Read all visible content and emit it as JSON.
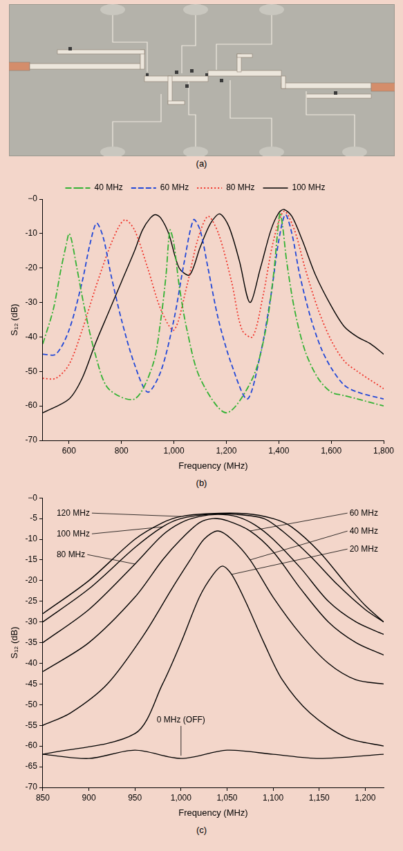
{
  "photo": {
    "caption": "(a)"
  },
  "chart_data": [
    {
      "type": "line",
      "caption": "(b)",
      "x_label": "Frequency (MHz)",
      "y_label": "S₁₂ (dB)",
      "xlim": [
        500,
        1800
      ],
      "xticks": [
        600,
        800,
        {
          "value": 1000,
          "label": "1,000"
        },
        {
          "value": 1200,
          "label": "1,200"
        },
        {
          "value": 1400,
          "label": "1,400"
        },
        {
          "value": 1600,
          "label": "1,600"
        },
        {
          "value": 1800,
          "label": "1,800"
        }
      ],
      "ylim": [
        -70,
        0
      ],
      "yticks": [
        -70,
        -60,
        -50,
        -40,
        -30,
        -20,
        -10,
        {
          "value": 0,
          "label": "−0"
        }
      ],
      "grid": false,
      "legend": "top",
      "series": [
        {
          "name": "40 MHz",
          "color": "#33b233",
          "line_style": "dashdot",
          "x": [
            500,
            540,
            570,
            590,
            600,
            610,
            630,
            660,
            700,
            750,
            850,
            920,
            950,
            970,
            985,
            1000,
            1020,
            1050,
            1100,
            1200,
            1300,
            1350,
            1380,
            1395,
            1405,
            1415,
            1430,
            1460,
            1500,
            1550,
            1600,
            1650,
            1700,
            1800
          ],
          "values": [
            -42,
            -32,
            -20,
            -13,
            -10,
            -12,
            -20,
            -32,
            -45,
            -55,
            -58,
            -48,
            -35,
            -22,
            -9,
            -13,
            -25,
            -38,
            -52,
            -62,
            -52,
            -38,
            -22,
            -10,
            -4,
            -8,
            -18,
            -32,
            -44,
            -52,
            -56,
            -57,
            -58,
            -60
          ]
        },
        {
          "name": "60 MHz",
          "color": "#2147d8",
          "line_style": "dashed",
          "x": [
            500,
            550,
            600,
            650,
            680,
            705,
            730,
            760,
            800,
            850,
            900,
            950,
            1000,
            1040,
            1075,
            1100,
            1130,
            1170,
            1220,
            1280,
            1330,
            1370,
            1400,
            1425,
            1450,
            1480,
            1520,
            1560,
            1600,
            1650,
            1700,
            1800
          ],
          "values": [
            -45,
            -45,
            -38,
            -24,
            -13,
            -7,
            -11,
            -22,
            -35,
            -48,
            -56,
            -50,
            -35,
            -18,
            -6,
            -9,
            -20,
            -35,
            -48,
            -58,
            -45,
            -28,
            -12,
            -4.5,
            -10,
            -22,
            -34,
            -43,
            -49,
            -54,
            -56,
            -58
          ]
        },
        {
          "name": "80 MHz",
          "color": "#f0332a",
          "line_style": "dotted",
          "x": [
            500,
            550,
            600,
            650,
            700,
            750,
            790,
            815,
            850,
            900,
            950,
            1000,
            1050,
            1090,
            1130,
            1170,
            1220,
            1260,
            1300,
            1340,
            1380,
            1420,
            1460,
            1500,
            1550,
            1600,
            1650,
            1700,
            1800
          ],
          "values": [
            -52,
            -52,
            -48,
            -38,
            -26,
            -15,
            -8,
            -6,
            -9,
            -20,
            -32,
            -38,
            -25,
            -12,
            -5,
            -10,
            -24,
            -38,
            -40,
            -28,
            -12,
            -3.5,
            -9,
            -20,
            -32,
            -41,
            -47,
            -50,
            -55
          ]
        },
        {
          "name": "100 MHz",
          "color": "#000000",
          "line_style": "solid",
          "x": [
            500,
            600,
            650,
            700,
            750,
            800,
            850,
            880,
            910,
            930,
            950,
            980,
            1020,
            1060,
            1100,
            1140,
            1175,
            1210,
            1250,
            1290,
            1330,
            1370,
            1400,
            1420,
            1450,
            1490,
            1540,
            1600,
            1650,
            1700,
            1750,
            1800
          ],
          "values": [
            -62,
            -58,
            -52,
            -42,
            -33,
            -24,
            -15,
            -9,
            -5.5,
            -4.5,
            -5.5,
            -10,
            -20,
            -22,
            -14,
            -7,
            -4.3,
            -8,
            -18,
            -30,
            -20,
            -9,
            -4,
            -3,
            -5,
            -12,
            -22,
            -31,
            -37,
            -40,
            -42,
            -45
          ]
        }
      ]
    },
    {
      "type": "line",
      "caption": "(c)",
      "x_label": "Frequency (MHz)",
      "y_label": "S₁₂ (dB)",
      "xlim": [
        850,
        1220
      ],
      "xticks": [
        850,
        900,
        950,
        {
          "value": 1000,
          "label": "1,000"
        },
        {
          "value": 1050,
          "label": "1,050"
        },
        {
          "value": 1100,
          "label": "1,100"
        },
        {
          "value": 1150,
          "label": "1,150"
        },
        {
          "value": 1200,
          "label": "1,200"
        }
      ],
      "ylim": [
        -70,
        0
      ],
      "yticks": [
        -70,
        -65,
        -60,
        -55,
        -50,
        -45,
        -40,
        -35,
        -30,
        -25,
        -20,
        -15,
        -10,
        -5,
        {
          "value": 0,
          "label": "−0"
        }
      ],
      "grid": false,
      "series": [
        {
          "name": "0 MHz (OFF)",
          "color": "#000000",
          "line_style": "solid",
          "x": [
            850,
            900,
            950,
            1000,
            1050,
            1100,
            1150,
            1220
          ],
          "values": [
            -62,
            -63,
            -61,
            -63,
            -61,
            -62,
            -63,
            -62
          ]
        },
        {
          "name": "20 MHz",
          "color": "#000000",
          "line_style": "solid",
          "x": [
            850,
            950,
            980,
            1000,
            1020,
            1035,
            1045,
            1055,
            1070,
            1090,
            1110,
            1140,
            1180,
            1220
          ],
          "values": [
            -62,
            -57,
            -45,
            -35,
            -24,
            -18.5,
            -16.5,
            -18.5,
            -25,
            -35,
            -44,
            -52,
            -58,
            -60
          ]
        },
        {
          "name": "40 MHz",
          "color": "#000000",
          "line_style": "solid",
          "x": [
            850,
            880,
            920,
            960,
            990,
            1010,
            1025,
            1040,
            1055,
            1075,
            1100,
            1130,
            1160,
            1190,
            1220
          ],
          "values": [
            -55,
            -52,
            -45,
            -33,
            -22,
            -15,
            -10,
            -8,
            -10,
            -15,
            -24,
            -33,
            -40,
            -44,
            -45
          ]
        },
        {
          "name": "60 MHz",
          "color": "#000000",
          "line_style": "solid",
          "x": [
            850,
            900,
            950,
            980,
            1000,
            1020,
            1035,
            1050,
            1075,
            1100,
            1130,
            1160,
            1190,
            1220
          ],
          "values": [
            -42,
            -35,
            -24,
            -15,
            -10,
            -6,
            -5,
            -5.5,
            -8,
            -13,
            -22,
            -30,
            -35,
            -38
          ]
        },
        {
          "name": "80 MHz",
          "color": "#000000",
          "line_style": "solid",
          "x": [
            850,
            900,
            950,
            980,
            1000,
            1020,
            1040,
            1060,
            1080,
            1100,
            1130,
            1160,
            1190,
            1220
          ],
          "values": [
            -35,
            -27,
            -16,
            -9,
            -6,
            -4.5,
            -4,
            -4.5,
            -6.5,
            -10,
            -17,
            -25,
            -30,
            -33
          ]
        },
        {
          "name": "100 MHz",
          "color": "#000000",
          "line_style": "solid",
          "x": [
            850,
            900,
            950,
            980,
            1000,
            1030,
            1060,
            1090,
            1110,
            1140,
            1170,
            1200,
            1220
          ],
          "values": [
            -30,
            -22,
            -12,
            -7,
            -5,
            -4,
            -4,
            -5,
            -8,
            -14,
            -21,
            -27,
            -30
          ]
        },
        {
          "name": "120 MHz",
          "color": "#000000",
          "line_style": "solid",
          "x": [
            850,
            900,
            950,
            980,
            1000,
            1030,
            1070,
            1100,
            1120,
            1150,
            1180,
            1200,
            1220
          ],
          "values": [
            -28,
            -20,
            -10,
            -6,
            -4.5,
            -3.8,
            -3.8,
            -5,
            -7,
            -13,
            -21,
            -26,
            -30
          ]
        }
      ]
    }
  ]
}
